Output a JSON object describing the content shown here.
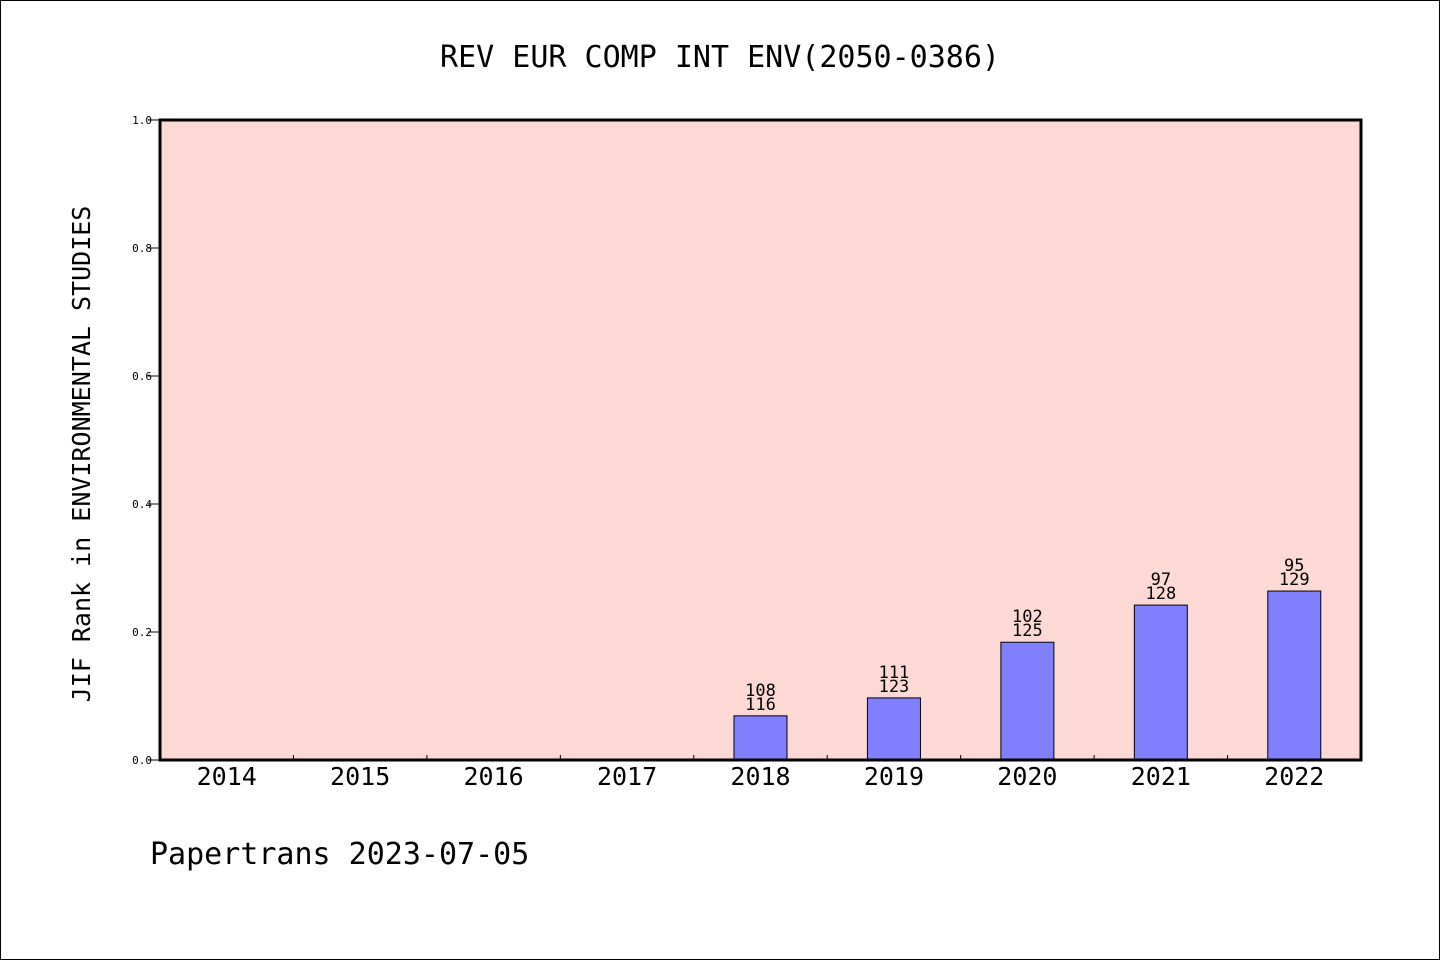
{
  "chart_data": {
    "type": "bar",
    "title": "REV EUR COMP INT ENV(2050-0386)",
    "ylabel": "JIF Rank in ENVIRONMENTAL STUDIES",
    "xlabel": "",
    "footer": "Papertrans 2023-07-05",
    "ylim": [
      0,
      1.0
    ],
    "yticks": [
      "0.0",
      "0.2",
      "0.4",
      "0.6",
      "0.8",
      "1.0"
    ],
    "categories": [
      "2014",
      "2015",
      "2016",
      "2017",
      "2018",
      "2019",
      "2020",
      "2021",
      "2022"
    ],
    "values": [
      null,
      null,
      null,
      null,
      0.069,
      0.097,
      0.184,
      0.242,
      0.264
    ],
    "rank_labels": [
      "",
      "",
      "",
      "",
      "108",
      "111",
      "102",
      "97",
      "95"
    ],
    "total_labels": [
      "",
      "",
      "",
      "",
      "116",
      "123",
      "125",
      "128",
      "129"
    ],
    "grid": false,
    "plot_background": "#fdd9d6",
    "bar_color": "#8080ff"
  }
}
